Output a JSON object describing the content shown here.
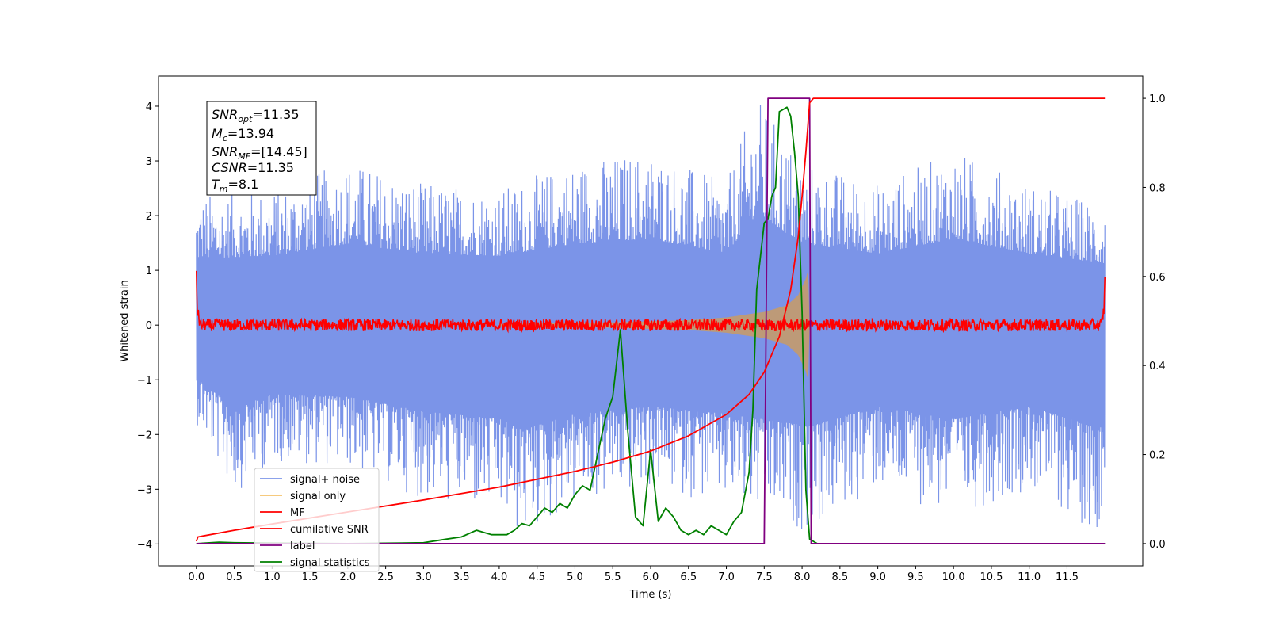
{
  "chart_data": {
    "type": "line",
    "xlabel": "Time (s)",
    "ylabel": "Whitened strain",
    "xlim": [
      -0.5,
      12.5
    ],
    "ylim_left": [
      -4.4,
      4.55
    ],
    "ylim_right": [
      -0.05,
      1.05
    ],
    "x_ticks": [
      "0.0",
      "0.5",
      "1.0",
      "1.5",
      "2.0",
      "2.5",
      "3.0",
      "3.5",
      "4.0",
      "4.5",
      "5.0",
      "5.5",
      "6.0",
      "6.5",
      "7.0",
      "7.5",
      "8.0",
      "8.5",
      "9.0",
      "9.5",
      "10.0",
      "10.5",
      "11.0",
      "11.5"
    ],
    "y_left_ticks": [
      "−4",
      "−3",
      "−2",
      "−1",
      "0",
      "1",
      "2",
      "3",
      "4"
    ],
    "y_right_ticks": [
      "0.0",
      "0.2",
      "0.4",
      "0.6",
      "0.8",
      "1.0"
    ],
    "annotation": {
      "snr_opt": {
        "base": "SNR",
        "sub": "opt",
        "value": "=11.35"
      },
      "mc": {
        "base": "M",
        "sub": "c",
        "value": "=13.94"
      },
      "snr_mf": {
        "base": "SNR",
        "sub": "MF",
        "value": "=[14.45]"
      },
      "csnr": {
        "base": "CSNR",
        "value": "=11.35"
      },
      "tm": {
        "base": "T",
        "sub": "m",
        "value": "=8.1"
      }
    },
    "legend": {
      "placement": "lower-left",
      "entries": [
        "signal+ noise",
        "signal only",
        "MF",
        "cumilative SNR",
        "label",
        "signal statistics"
      ]
    },
    "series": [
      {
        "name": "signal+ noise",
        "axis": "left",
        "color": "#7b94e8",
        "note_envelope": true,
        "x_range": [
          0.0,
          12.0
        ],
        "upper_envelope_sample": [
          [
            0.0,
            2.4
          ],
          [
            1.0,
            2.5
          ],
          [
            2.0,
            3.0
          ],
          [
            3.0,
            2.6
          ],
          [
            4.0,
            2.5
          ],
          [
            5.0,
            3.0
          ],
          [
            6.0,
            3.2
          ],
          [
            7.0,
            2.6
          ],
          [
            7.4,
            4.2
          ],
          [
            8.0,
            3.0
          ],
          [
            9.0,
            2.6
          ],
          [
            10.0,
            3.2
          ],
          [
            11.0,
            2.6
          ],
          [
            12.0,
            2.2
          ]
        ],
        "lower_envelope_sample": [
          [
            0.0,
            -1.8
          ],
          [
            0.5,
            -3.1
          ],
          [
            1.0,
            -2.5
          ],
          [
            2.0,
            -2.6
          ],
          [
            3.0,
            -3.2
          ],
          [
            4.0,
            -3.5
          ],
          [
            4.3,
            -3.95
          ],
          [
            5.0,
            -3.3
          ],
          [
            6.0,
            -3.0
          ],
          [
            7.0,
            -3.3
          ],
          [
            8.1,
            -3.8
          ],
          [
            9.0,
            -3.0
          ],
          [
            10.0,
            -3.5
          ],
          [
            11.0,
            -3.0
          ],
          [
            11.9,
            -3.85
          ],
          [
            12.0,
            -2.9
          ]
        ]
      },
      {
        "name": "signal only",
        "axis": "left",
        "color": "#f5c26b",
        "amplitude": [
          [
            0.0,
            0.0
          ],
          [
            4.0,
            0.02
          ],
          [
            5.5,
            0.05
          ],
          [
            6.5,
            0.09
          ],
          [
            7.0,
            0.14
          ],
          [
            7.5,
            0.24
          ],
          [
            7.8,
            0.36
          ],
          [
            7.95,
            0.55
          ],
          [
            8.05,
            0.85
          ],
          [
            8.08,
            1.0
          ],
          [
            8.1,
            0.0
          ],
          [
            12.0,
            0.0
          ]
        ]
      },
      {
        "name": "MF",
        "axis": "left",
        "color": "#ff0000",
        "x": [
          0.0,
          0.01,
          0.05,
          11.95,
          11.99,
          12.0
        ],
        "y": [
          1.0,
          0.3,
          0.0,
          0.0,
          0.3,
          0.85
        ]
      },
      {
        "name": "cumilative SNR",
        "axis": "right",
        "color": "#ff0000",
        "x": [
          0.0,
          0.02,
          0.5,
          1.0,
          2.0,
          3.0,
          4.0,
          5.0,
          5.5,
          6.0,
          6.5,
          7.0,
          7.3,
          7.5,
          7.7,
          7.85,
          7.95,
          8.0,
          8.05,
          8.1,
          8.15,
          12.0
        ],
        "y": [
          0.005,
          0.015,
          0.03,
          0.044,
          0.071,
          0.098,
          0.127,
          0.162,
          0.183,
          0.208,
          0.242,
          0.29,
          0.335,
          0.385,
          0.465,
          0.57,
          0.69,
          0.78,
          0.88,
          0.99,
          1.0,
          1.0
        ]
      },
      {
        "name": "label",
        "axis": "right",
        "color": "#800080",
        "x": [
          0.0,
          7.5,
          7.55,
          8.1,
          8.12,
          12.0
        ],
        "y": [
          0.0,
          0.0,
          1.0,
          1.0,
          0.0,
          0.0
        ]
      },
      {
        "name": "signal statistics",
        "axis": "right",
        "color": "#008000",
        "x": [
          0.0,
          0.3,
          0.5,
          1.0,
          2.0,
          3.0,
          3.3,
          3.5,
          3.7,
          3.9,
          4.1,
          4.2,
          4.3,
          4.4,
          4.5,
          4.6,
          4.7,
          4.8,
          4.9,
          5.0,
          5.1,
          5.2,
          5.3,
          5.4,
          5.5,
          5.6,
          5.7,
          5.8,
          5.9,
          6.0,
          6.1,
          6.2,
          6.3,
          6.4,
          6.5,
          6.6,
          6.7,
          6.8,
          6.9,
          7.0,
          7.1,
          7.2,
          7.3,
          7.35,
          7.4,
          7.5,
          7.55,
          7.6,
          7.65,
          7.7,
          7.8,
          7.85,
          7.9,
          7.95,
          8.0,
          8.05,
          8.1,
          8.15,
          8.2,
          8.3,
          12.0
        ],
        "y": [
          0.0,
          0.003,
          0.002,
          0.001,
          0.0,
          0.002,
          0.01,
          0.015,
          0.03,
          0.02,
          0.02,
          0.03,
          0.045,
          0.04,
          0.06,
          0.08,
          0.07,
          0.09,
          0.08,
          0.11,
          0.13,
          0.12,
          0.2,
          0.28,
          0.33,
          0.48,
          0.25,
          0.06,
          0.04,
          0.21,
          0.05,
          0.08,
          0.06,
          0.03,
          0.02,
          0.03,
          0.02,
          0.04,
          0.03,
          0.02,
          0.05,
          0.07,
          0.16,
          0.3,
          0.57,
          0.72,
          0.73,
          0.78,
          0.8,
          0.97,
          0.98,
          0.96,
          0.88,
          0.78,
          0.52,
          0.12,
          0.01,
          0.005,
          0.0,
          0.0,
          0.0
        ]
      }
    ]
  }
}
